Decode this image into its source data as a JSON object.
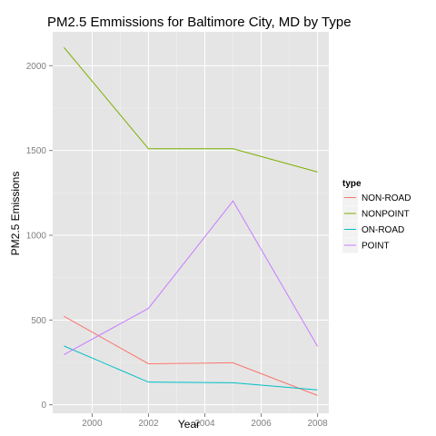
{
  "chart_data": {
    "type": "line",
    "title": "PM2.5 Emmissions for Baltimore City, MD by Type",
    "xlabel": "Year",
    "ylabel": "PM2.5 Emissions",
    "x": [
      1999,
      2002,
      2005,
      2008
    ],
    "xticks": [
      "2000",
      "2002",
      "2004",
      "2006",
      "2008"
    ],
    "yticks": [
      "0",
      "500",
      "1000",
      "1500",
      "2000"
    ],
    "xlim": [
      1998.6,
      2008.4
    ],
    "ylim": [
      -50,
      2200
    ],
    "grid": true,
    "legend": {
      "title": "type",
      "placement": "right"
    },
    "series": [
      {
        "name": "NON-ROAD",
        "color": "#f8766d",
        "values": [
          522,
          242,
          248,
          55
        ]
      },
      {
        "name": "NONPOINT",
        "color": "#7cae00",
        "values": [
          2108,
          1510,
          1510,
          1373
        ]
      },
      {
        "name": "ON-ROAD",
        "color": "#00bfc4",
        "values": [
          347,
          134,
          130,
          88
        ]
      },
      {
        "name": "POINT",
        "color": "#c77cff",
        "values": [
          296,
          569,
          1202,
          345
        ]
      }
    ]
  }
}
